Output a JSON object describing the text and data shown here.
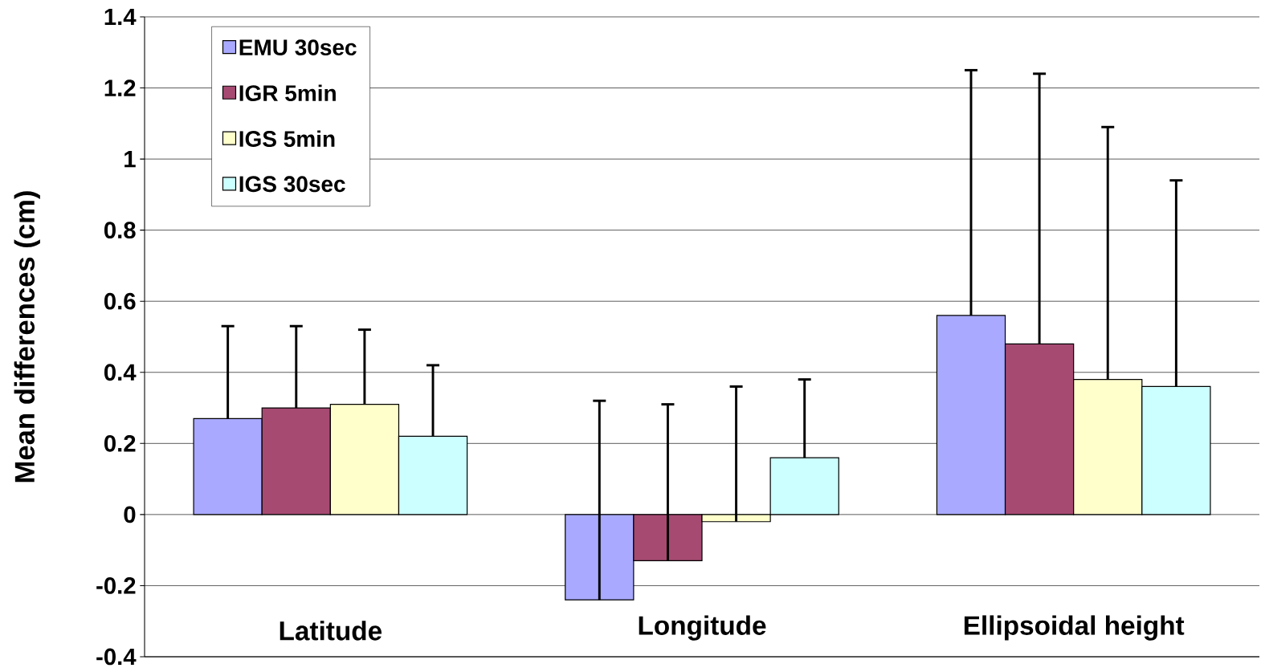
{
  "chart_data": {
    "type": "bar",
    "ylabel": "Mean differences (cm)",
    "categories": [
      "Latitude",
      "Longitude",
      "Ellipsoidal height"
    ],
    "series": [
      {
        "name": "EMU 30sec",
        "color": "#a9a9ff",
        "values": [
          0.27,
          -0.24,
          0.56
        ],
        "errors": [
          [
            0.27,
            0.53
          ],
          [
            -0.24,
            0.32
          ],
          [
            0.56,
            1.25
          ]
        ]
      },
      {
        "name": "IGR 5min",
        "color": "#a64a72",
        "values": [
          0.3,
          -0.13,
          0.48
        ],
        "errors": [
          [
            0.3,
            0.53
          ],
          [
            -0.13,
            0.31
          ],
          [
            0.48,
            1.24
          ]
        ]
      },
      {
        "name": "IGS 5min",
        "color": "#ffffcc",
        "values": [
          0.31,
          -0.02,
          0.38
        ],
        "errors": [
          [
            0.31,
            0.52
          ],
          [
            -0.02,
            0.36
          ],
          [
            0.38,
            1.09
          ]
        ]
      },
      {
        "name": "IGS 30sec",
        "color": "#ccffff",
        "values": [
          0.22,
          0.16,
          0.36
        ],
        "errors": [
          [
            0.22,
            0.42
          ],
          [
            0.16,
            0.38
          ],
          [
            0.36,
            0.94
          ]
        ]
      }
    ],
    "ylim": [
      -0.4,
      1.4
    ],
    "yticks": [
      -0.4,
      -0.2,
      0,
      0.2,
      0.4,
      0.6,
      0.8,
      1,
      1.2,
      1.4
    ],
    "grid": "y",
    "legend": "top left"
  }
}
